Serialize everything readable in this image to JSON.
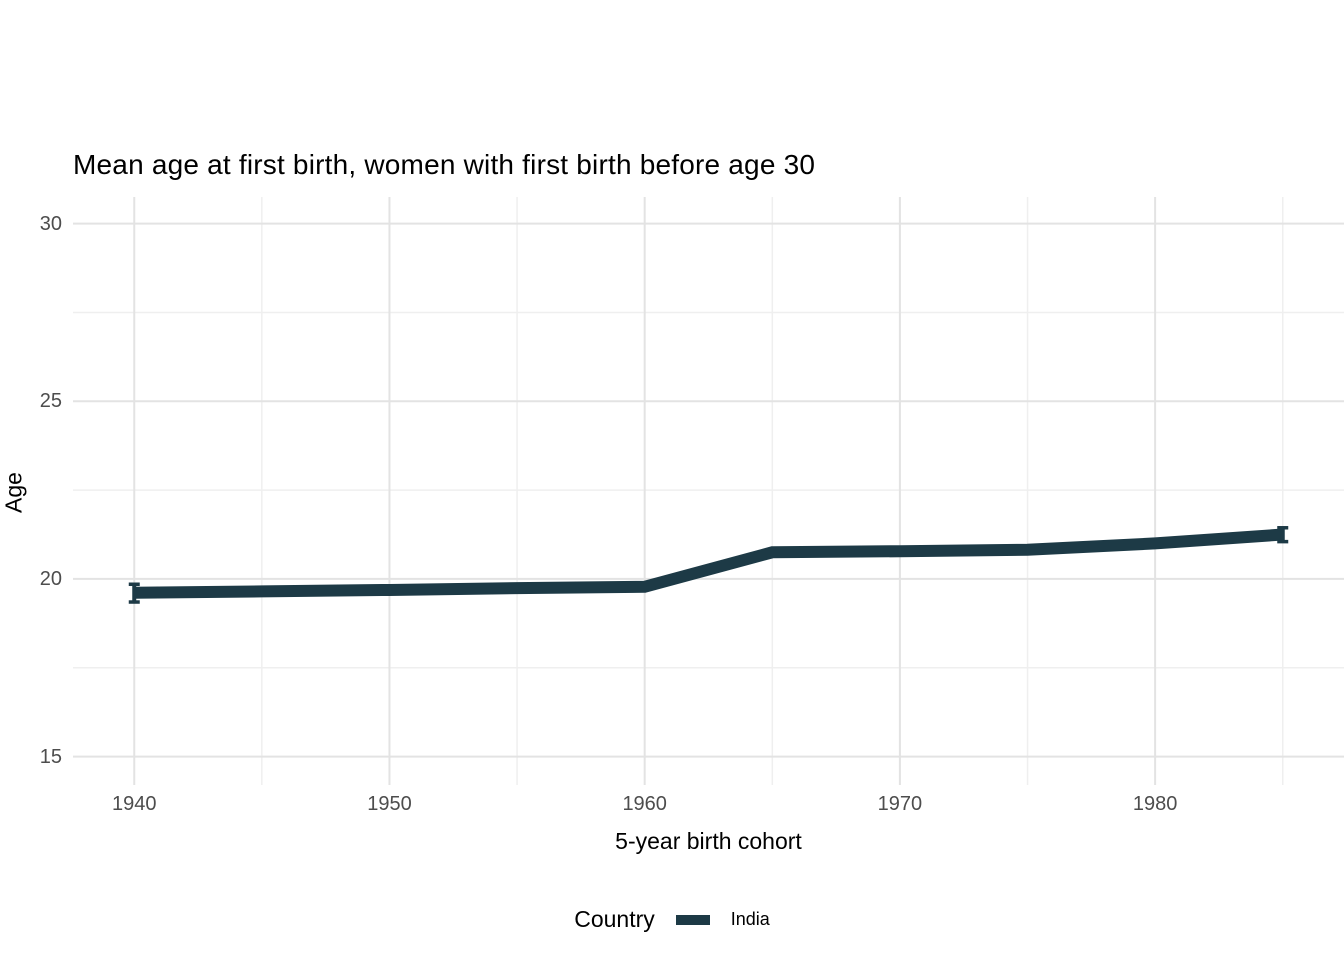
{
  "chart_data": {
    "type": "line",
    "title": "Mean age at first birth, women with first birth before age 30",
    "xlabel": "5-year birth cohort",
    "ylabel": "Age",
    "legend_title": "Country",
    "legend_position": "bottom",
    "grid": true,
    "x": [
      1940,
      1945,
      1950,
      1955,
      1960,
      1965,
      1970,
      1975,
      1980,
      1985
    ],
    "series": [
      {
        "name": "India",
        "color": "#1d3a46",
        "values": [
          19.61,
          19.65,
          19.69,
          19.74,
          19.78,
          20.75,
          20.78,
          20.82,
          21.0,
          21.25
        ]
      }
    ],
    "error_bars": [
      {
        "x": 1940,
        "low": 19.35,
        "high": 19.85
      },
      {
        "x": 1985,
        "low": 21.05,
        "high": 21.44
      }
    ],
    "xlim": [
      1937.6,
      1987.4
    ],
    "ylim": [
      14.2,
      30.75
    ],
    "x_major_ticks": [
      1940,
      1950,
      1960,
      1970,
      1980
    ],
    "x_minor_ticks": [
      1945,
      1955,
      1965,
      1975,
      1985
    ],
    "y_major_ticks": [
      15,
      20,
      25,
      30
    ],
    "y_minor_ticks": [
      17.5,
      22.5,
      27.5
    ]
  },
  "style": {
    "grid_major_color": "#e3e3e3",
    "grid_minor_color": "#efefef",
    "tick_label_color": "#4d4d4d",
    "text_color": "#000000",
    "background": "#ffffff"
  }
}
